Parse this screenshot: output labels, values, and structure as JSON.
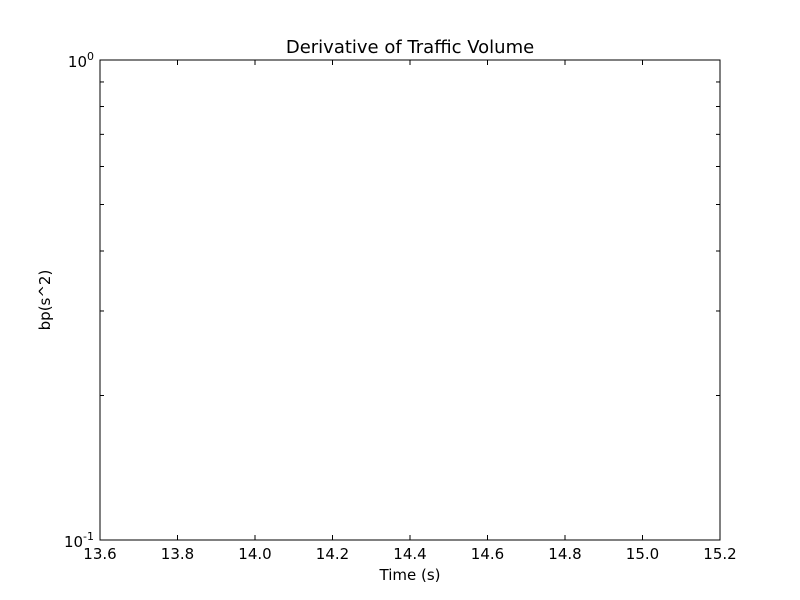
{
  "chart_data": {
    "type": "line",
    "title": "Derivative of Traffic Volume",
    "xlabel": "Time (s)",
    "ylabel": "bp(s^2)",
    "xlim": [
      13.6,
      15.2
    ],
    "ylim": [
      0.1,
      1
    ],
    "yscale": "log",
    "xticks": [
      "13.6",
      "13.8",
      "14.0",
      "14.2",
      "14.4",
      "14.6",
      "14.8",
      "15.0",
      "15.2"
    ],
    "yticks": [
      {
        "base": "10",
        "exp": "-1"
      },
      {
        "base": "10",
        "exp": "0"
      }
    ],
    "grid": false,
    "series": []
  }
}
